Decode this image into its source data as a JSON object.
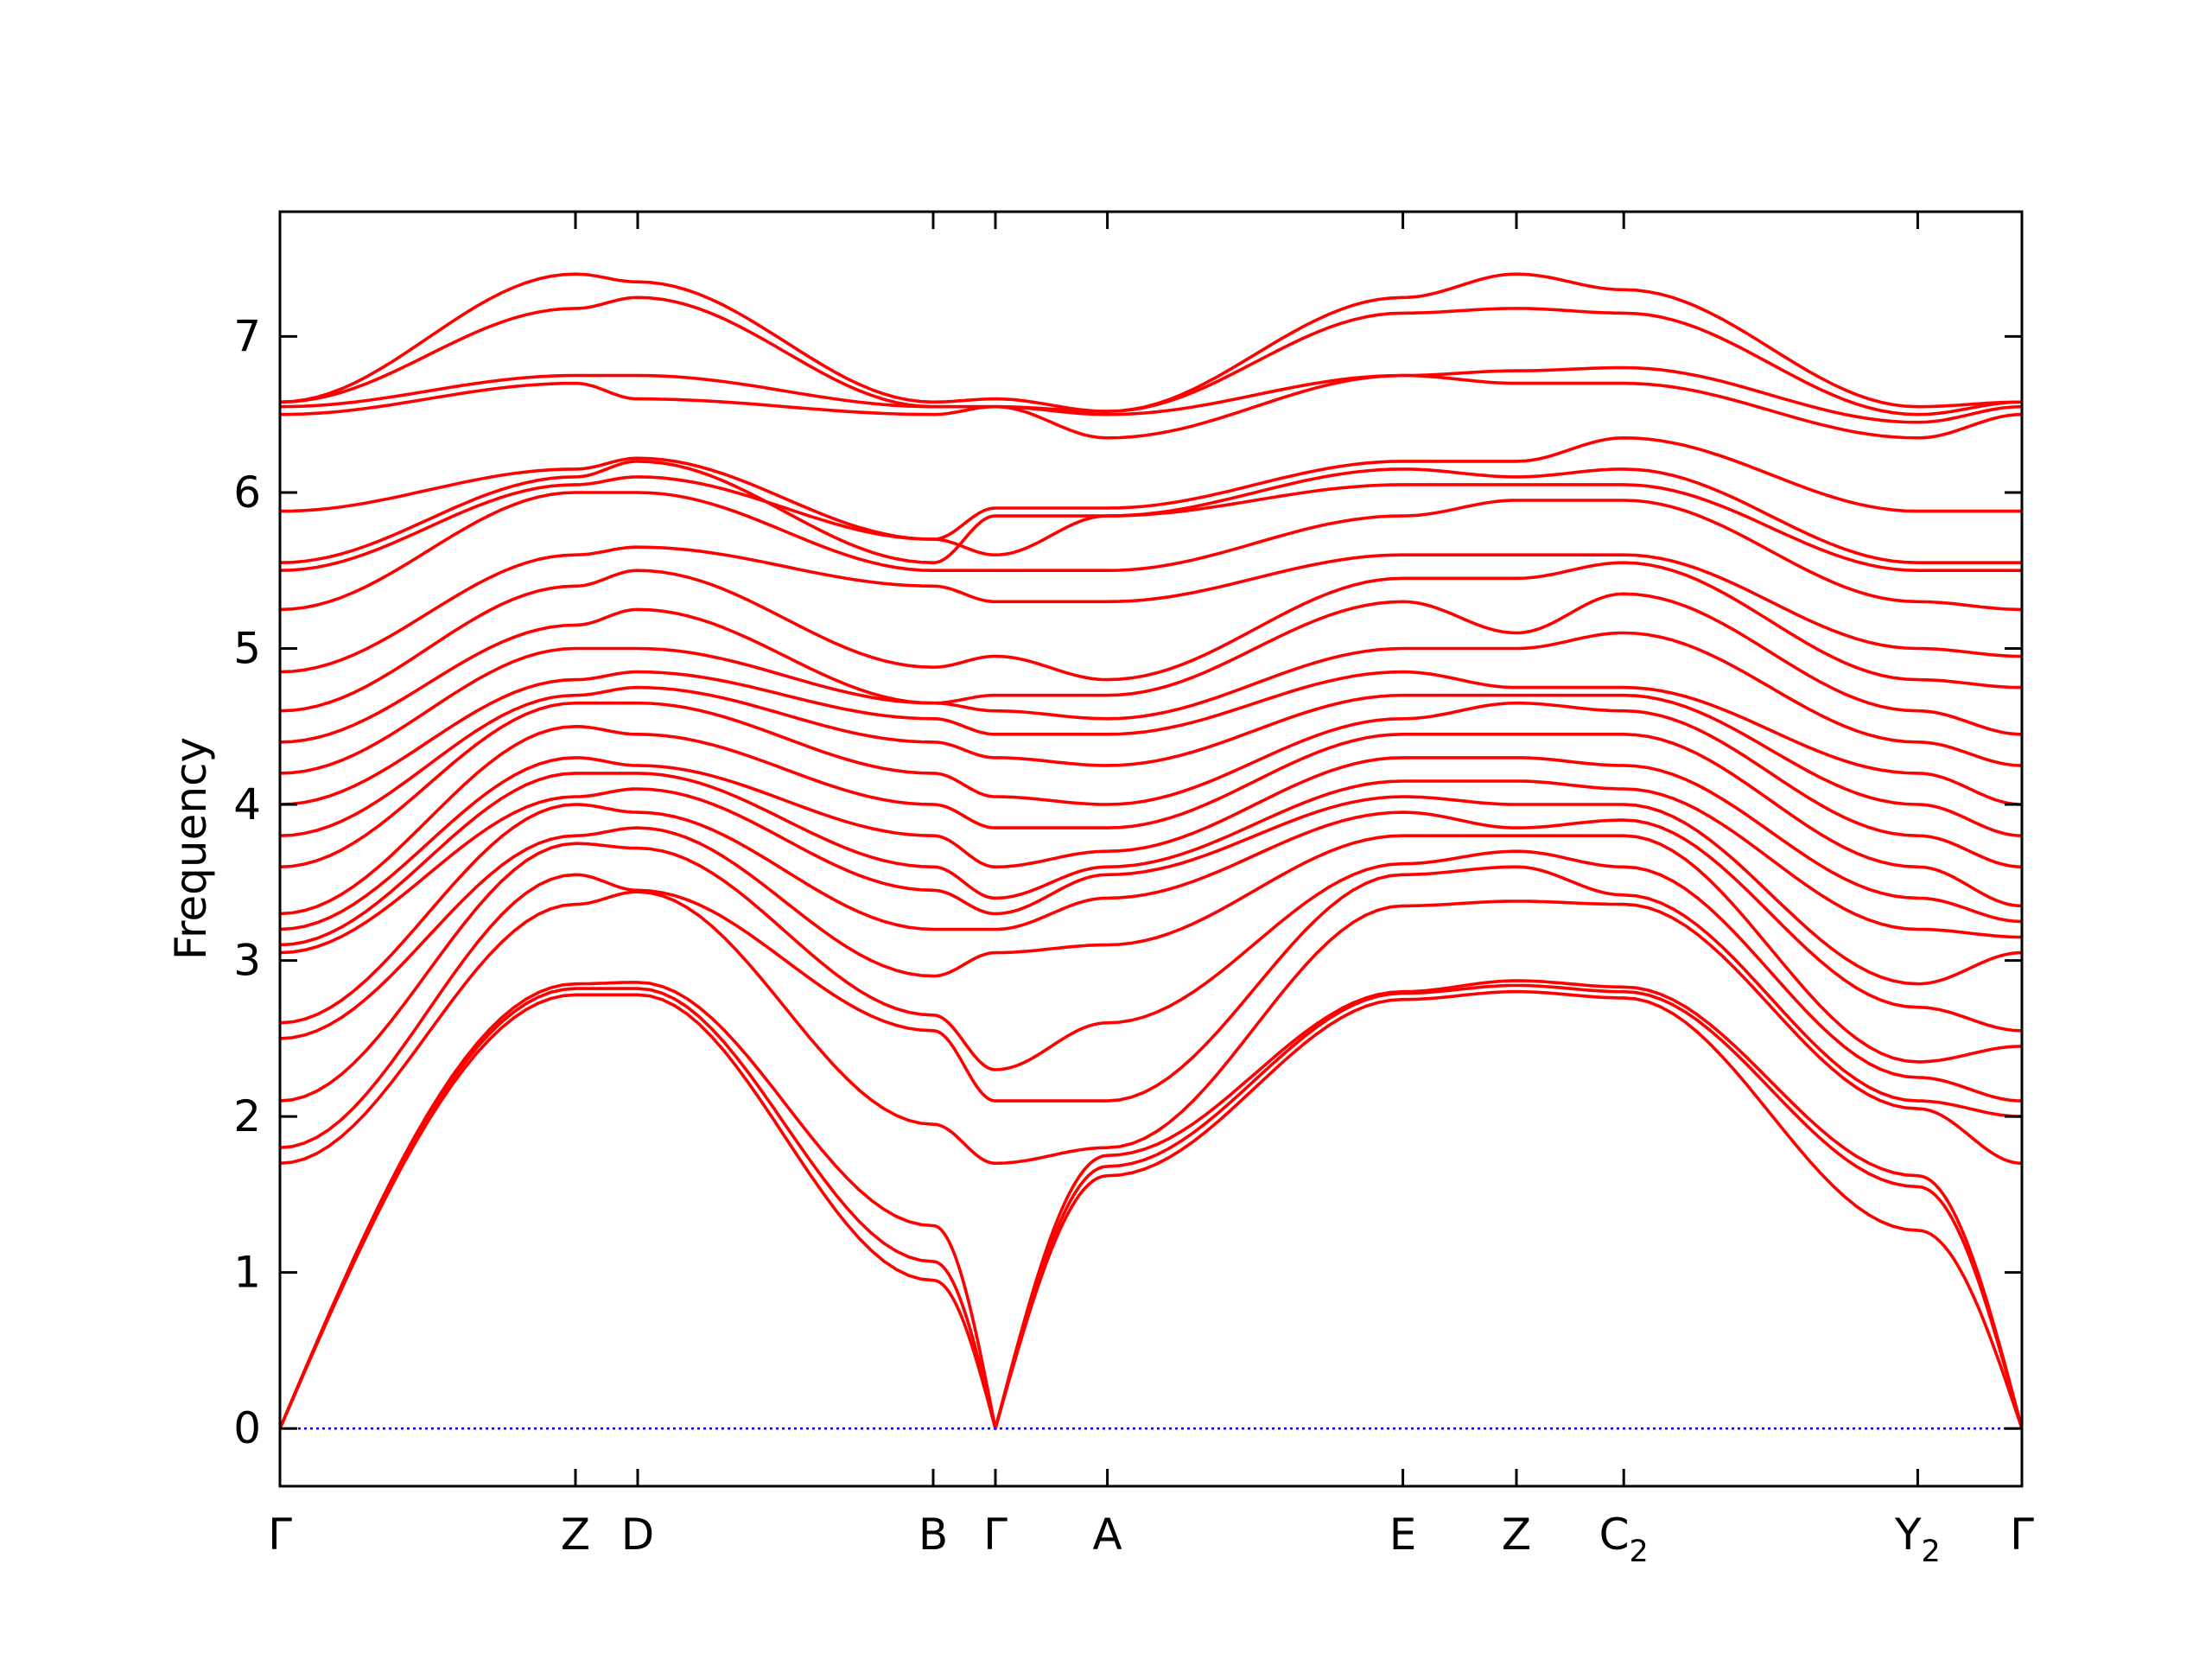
{
  "chart_data": {
    "type": "line",
    "title": "",
    "xlabel": "",
    "ylabel": "Frequency",
    "ylim": [
      -0.37,
      7.8
    ],
    "yticks": [
      0,
      1,
      2,
      3,
      4,
      5,
      6,
      7
    ],
    "xlim": [
      0,
      11.2
    ],
    "kpoints": [
      {
        "label": "Γ",
        "sub": "",
        "x": 0.0
      },
      {
        "label": "Z",
        "sub": "",
        "x": 1.9
      },
      {
        "label": "D",
        "sub": "",
        "x": 2.3
      },
      {
        "label": "B",
        "sub": "",
        "x": 4.2
      },
      {
        "label": "Γ",
        "sub": "",
        "x": 4.6
      },
      {
        "label": "A",
        "sub": "",
        "x": 5.32
      },
      {
        "label": "E",
        "sub": "",
        "x": 7.22
      },
      {
        "label": "Z",
        "sub": "",
        "x": 7.95
      },
      {
        "label": "C",
        "sub": "2",
        "x": 8.64
      },
      {
        "label": "Y",
        "sub": "2",
        "x": 10.53
      },
      {
        "label": "Γ",
        "sub": "",
        "x": 11.2
      }
    ],
    "band_color": "#ff0000",
    "zero_line_color": "#0000ff",
    "grid": false,
    "series": [
      {
        "values": [
          0.0,
          2.78,
          2.78,
          0.95,
          0.0,
          1.62,
          2.75,
          2.8,
          2.76,
          1.27,
          0.0
        ]
      },
      {
        "values": [
          0.0,
          2.82,
          2.82,
          1.07,
          0.0,
          1.68,
          2.79,
          2.84,
          2.8,
          1.55,
          0.0
        ]
      },
      {
        "values": [
          0.0,
          2.85,
          2.86,
          1.3,
          0.0,
          1.75,
          2.8,
          2.87,
          2.83,
          1.62,
          0.0
        ]
      },
      {
        "values": [
          1.7,
          3.36,
          3.44,
          1.95,
          1.7,
          1.8,
          3.35,
          3.38,
          3.36,
          2.05,
          1.7
        ]
      },
      {
        "values": [
          1.8,
          3.55,
          3.45,
          2.55,
          2.1,
          2.1,
          3.55,
          3.6,
          3.42,
          2.1,
          2.0
        ]
      },
      {
        "values": [
          2.1,
          3.75,
          3.72,
          2.65,
          2.3,
          2.6,
          3.62,
          3.7,
          3.6,
          2.25,
          2.1
        ]
      },
      {
        "values": [
          2.5,
          3.8,
          3.85,
          2.9,
          3.05,
          3.1,
          3.8,
          3.8,
          3.8,
          2.35,
          2.45
        ]
      },
      {
        "values": [
          2.6,
          4.0,
          3.95,
          3.2,
          3.2,
          3.4,
          3.95,
          3.85,
          3.9,
          2.7,
          2.55
        ]
      },
      {
        "values": [
          3.05,
          4.05,
          4.1,
          3.45,
          3.3,
          3.55,
          4.05,
          4.0,
          4.0,
          2.85,
          3.05
        ]
      },
      {
        "values": [
          3.1,
          4.2,
          4.2,
          3.6,
          3.4,
          3.6,
          4.15,
          4.15,
          4.1,
          3.2,
          3.15
        ]
      },
      {
        "values": [
          3.2,
          4.3,
          4.25,
          3.8,
          3.6,
          3.7,
          4.3,
          4.3,
          4.25,
          3.4,
          3.25
        ]
      },
      {
        "values": [
          3.3,
          4.5,
          4.45,
          4.0,
          3.85,
          3.85,
          4.45,
          4.45,
          4.45,
          3.6,
          3.35
        ]
      },
      {
        "values": [
          3.6,
          4.65,
          4.65,
          4.2,
          4.05,
          4.0,
          4.55,
          4.65,
          4.6,
          3.8,
          3.6
        ]
      },
      {
        "values": [
          3.8,
          4.7,
          4.75,
          4.4,
          4.3,
          4.25,
          4.7,
          4.7,
          4.7,
          4.0,
          3.8
        ]
      },
      {
        "values": [
          4.0,
          4.8,
          4.85,
          4.55,
          4.45,
          4.45,
          4.85,
          4.75,
          4.75,
          4.2,
          4.0
        ]
      },
      {
        "values": [
          4.2,
          5.0,
          5.0,
          4.65,
          4.6,
          4.55,
          5.0,
          5.0,
          5.1,
          4.4,
          4.25
        ]
      },
      {
        "values": [
          4.4,
          5.15,
          5.25,
          4.65,
          4.7,
          4.7,
          5.3,
          5.1,
          5.35,
          4.6,
          4.45
        ]
      },
      {
        "values": [
          4.6,
          5.4,
          5.5,
          4.88,
          4.95,
          4.8,
          5.45,
          5.45,
          5.55,
          4.8,
          4.75
        ]
      },
      {
        "values": [
          4.85,
          5.6,
          5.65,
          5.4,
          5.3,
          5.3,
          5.6,
          5.6,
          5.6,
          5.0,
          4.95
        ]
      },
      {
        "values": [
          5.25,
          6.0,
          6.0,
          5.5,
          5.5,
          5.5,
          5.85,
          5.95,
          5.95,
          5.3,
          5.25
        ]
      },
      {
        "values": [
          5.5,
          6.05,
          6.1,
          5.7,
          5.6,
          5.85,
          6.05,
          6.05,
          6.05,
          5.5,
          5.5
        ]
      },
      {
        "values": [
          5.55,
          6.1,
          6.2,
          5.55,
          5.85,
          5.85,
          6.15,
          6.1,
          6.15,
          5.55,
          5.55
        ]
      },
      {
        "values": [
          5.88,
          6.15,
          6.22,
          5.7,
          5.9,
          5.9,
          6.2,
          6.2,
          6.35,
          5.88,
          5.88
        ]
      },
      {
        "values": [
          6.5,
          6.7,
          6.6,
          6.5,
          6.55,
          6.35,
          6.75,
          6.7,
          6.7,
          6.35,
          6.5
        ]
      },
      {
        "values": [
          6.55,
          6.75,
          6.75,
          6.55,
          6.55,
          6.5,
          6.75,
          6.78,
          6.8,
          6.45,
          6.55
        ]
      },
      {
        "values": [
          6.58,
          7.18,
          7.25,
          6.55,
          6.55,
          6.52,
          7.15,
          7.18,
          7.15,
          6.5,
          6.58
        ]
      },
      {
        "values": [
          6.58,
          7.4,
          7.35,
          6.58,
          6.6,
          6.52,
          7.25,
          7.4,
          7.3,
          6.55,
          6.58
        ]
      }
    ]
  }
}
